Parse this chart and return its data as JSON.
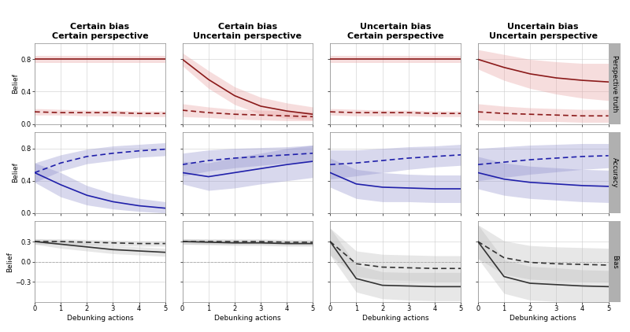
{
  "col_titles": [
    "Certain bias\nCertain perspective",
    "Certain bias\nUncertain perspective",
    "Uncertain bias\nCertain perspective",
    "Uncertain bias\nUncertain perspective"
  ],
  "row_labels": [
    "Perspective truth",
    "Accuracy",
    "Bias"
  ],
  "x": [
    0,
    1,
    2,
    3,
    4,
    5
  ],
  "colors": {
    "red_solid": "#8B1A1A",
    "red_fill": "#e8a0a0",
    "blue_solid": "#2020AA",
    "blue_fill": "#9090cc",
    "gray_solid": "#333333",
    "gray_fill": "#bbbbbb"
  },
  "charts": {
    "row0_col0": {
      "solid_y": [
        0.8,
        0.8,
        0.8,
        0.8,
        0.8,
        0.8
      ],
      "solid_lo": [
        0.76,
        0.76,
        0.76,
        0.76,
        0.76,
        0.76
      ],
      "solid_hi": [
        0.84,
        0.84,
        0.84,
        0.84,
        0.84,
        0.84
      ],
      "dash_y": [
        0.15,
        0.14,
        0.14,
        0.14,
        0.13,
        0.13
      ],
      "dash_lo": [
        0.11,
        0.11,
        0.1,
        0.1,
        0.09,
        0.09
      ],
      "dash_hi": [
        0.19,
        0.18,
        0.17,
        0.17,
        0.16,
        0.16
      ],
      "ylim": [
        0.0,
        1.0
      ],
      "yticks": [
        0.0,
        0.4,
        0.8
      ]
    },
    "row0_col1": {
      "solid_y": [
        0.8,
        0.55,
        0.35,
        0.22,
        0.16,
        0.12
      ],
      "solid_lo": [
        0.72,
        0.44,
        0.24,
        0.12,
        0.07,
        0.05
      ],
      "solid_hi": [
        0.88,
        0.66,
        0.46,
        0.33,
        0.26,
        0.21
      ],
      "dash_y": [
        0.17,
        0.14,
        0.12,
        0.11,
        0.1,
        0.09
      ],
      "dash_lo": [
        0.09,
        0.08,
        0.06,
        0.05,
        0.04,
        0.04
      ],
      "dash_hi": [
        0.25,
        0.21,
        0.18,
        0.17,
        0.16,
        0.15
      ],
      "ylim": [
        0.0,
        1.0
      ],
      "yticks": [
        0.0,
        0.4,
        0.8
      ]
    },
    "row0_col2": {
      "solid_y": [
        0.8,
        0.8,
        0.8,
        0.8,
        0.8,
        0.8
      ],
      "solid_lo": [
        0.76,
        0.76,
        0.76,
        0.76,
        0.76,
        0.76
      ],
      "solid_hi": [
        0.84,
        0.84,
        0.84,
        0.84,
        0.84,
        0.84
      ],
      "dash_y": [
        0.15,
        0.14,
        0.14,
        0.14,
        0.13,
        0.13
      ],
      "dash_lo": [
        0.11,
        0.1,
        0.1,
        0.1,
        0.09,
        0.09
      ],
      "dash_hi": [
        0.19,
        0.18,
        0.17,
        0.17,
        0.16,
        0.16
      ],
      "ylim": [
        0.0,
        1.0
      ],
      "yticks": [
        0.0,
        0.4,
        0.8
      ]
    },
    "row0_col3": {
      "solid_y": [
        0.8,
        0.7,
        0.62,
        0.57,
        0.54,
        0.52
      ],
      "solid_lo": [
        0.68,
        0.54,
        0.44,
        0.37,
        0.32,
        0.29
      ],
      "solid_hi": [
        0.92,
        0.86,
        0.8,
        0.77,
        0.75,
        0.75
      ],
      "dash_y": [
        0.15,
        0.13,
        0.12,
        0.11,
        0.1,
        0.1
      ],
      "dash_lo": [
        0.05,
        0.04,
        0.03,
        0.03,
        0.02,
        0.02
      ],
      "dash_hi": [
        0.25,
        0.22,
        0.2,
        0.19,
        0.18,
        0.18
      ],
      "ylim": [
        0.0,
        1.0
      ],
      "yticks": [
        0.0,
        0.4,
        0.8
      ]
    },
    "row1_col0": {
      "solid_y": [
        0.5,
        0.35,
        0.22,
        0.14,
        0.09,
        0.06
      ],
      "solid_lo": [
        0.38,
        0.2,
        0.1,
        0.05,
        0.02,
        0.0
      ],
      "solid_hi": [
        0.62,
        0.5,
        0.34,
        0.24,
        0.18,
        0.14
      ],
      "dash_y": [
        0.5,
        0.62,
        0.7,
        0.74,
        0.77,
        0.79
      ],
      "dash_lo": [
        0.38,
        0.52,
        0.61,
        0.65,
        0.69,
        0.71
      ],
      "dash_hi": [
        0.62,
        0.72,
        0.79,
        0.83,
        0.85,
        0.87
      ],
      "ylim": [
        0.0,
        1.0
      ],
      "yticks": [
        0.0,
        0.4,
        0.8
      ]
    },
    "row1_col1": {
      "solid_y": [
        0.5,
        0.45,
        0.5,
        0.55,
        0.6,
        0.64
      ],
      "solid_lo": [
        0.36,
        0.28,
        0.31,
        0.36,
        0.4,
        0.44
      ],
      "solid_hi": [
        0.64,
        0.62,
        0.69,
        0.74,
        0.8,
        0.84
      ],
      "dash_y": [
        0.6,
        0.65,
        0.68,
        0.7,
        0.72,
        0.74
      ],
      "dash_lo": [
        0.46,
        0.52,
        0.56,
        0.59,
        0.62,
        0.64
      ],
      "dash_hi": [
        0.74,
        0.78,
        0.8,
        0.81,
        0.82,
        0.84
      ],
      "ylim": [
        0.0,
        1.0
      ],
      "yticks": [
        0.0,
        0.4,
        0.8
      ]
    },
    "row1_col2": {
      "solid_y": [
        0.5,
        0.36,
        0.32,
        0.31,
        0.3,
        0.3
      ],
      "solid_lo": [
        0.32,
        0.18,
        0.14,
        0.14,
        0.13,
        0.13
      ],
      "solid_hi": [
        0.68,
        0.54,
        0.5,
        0.48,
        0.47,
        0.47
      ],
      "dash_y": [
        0.6,
        0.62,
        0.65,
        0.68,
        0.7,
        0.72
      ],
      "dash_lo": [
        0.42,
        0.46,
        0.5,
        0.54,
        0.57,
        0.59
      ],
      "dash_hi": [
        0.78,
        0.78,
        0.8,
        0.82,
        0.83,
        0.85
      ],
      "ylim": [
        0.0,
        1.0
      ],
      "yticks": [
        0.0,
        0.4,
        0.8
      ]
    },
    "row1_col3": {
      "solid_y": [
        0.5,
        0.42,
        0.38,
        0.36,
        0.34,
        0.33
      ],
      "solid_lo": [
        0.3,
        0.22,
        0.18,
        0.16,
        0.14,
        0.13
      ],
      "solid_hi": [
        0.7,
        0.62,
        0.58,
        0.56,
        0.54,
        0.53
      ],
      "dash_y": [
        0.6,
        0.63,
        0.66,
        0.68,
        0.7,
        0.71
      ],
      "dash_lo": [
        0.4,
        0.44,
        0.48,
        0.51,
        0.54,
        0.56
      ],
      "dash_hi": [
        0.8,
        0.82,
        0.84,
        0.85,
        0.86,
        0.86
      ],
      "ylim": [
        0.0,
        1.0
      ],
      "yticks": [
        0.0,
        0.4,
        0.8
      ]
    },
    "row2_col0": {
      "solid_y": [
        0.3,
        0.26,
        0.22,
        0.18,
        0.16,
        0.14
      ],
      "solid_lo": [
        0.26,
        0.2,
        0.16,
        0.12,
        0.1,
        0.08
      ],
      "solid_hi": [
        0.34,
        0.32,
        0.28,
        0.24,
        0.22,
        0.2
      ],
      "dash_y": [
        0.3,
        0.3,
        0.29,
        0.28,
        0.27,
        0.27
      ],
      "dash_lo": [
        0.26,
        0.26,
        0.25,
        0.24,
        0.23,
        0.23
      ],
      "dash_hi": [
        0.34,
        0.34,
        0.33,
        0.32,
        0.31,
        0.31
      ],
      "ylim": [
        -0.6,
        0.6
      ],
      "yticks": [
        -0.3,
        0.0,
        0.3
      ]
    },
    "row2_col1": {
      "solid_y": [
        0.3,
        0.29,
        0.28,
        0.28,
        0.27,
        0.27
      ],
      "solid_lo": [
        0.26,
        0.25,
        0.24,
        0.24,
        0.23,
        0.23
      ],
      "solid_hi": [
        0.34,
        0.33,
        0.32,
        0.32,
        0.31,
        0.31
      ],
      "dash_y": [
        0.3,
        0.3,
        0.3,
        0.3,
        0.29,
        0.29
      ],
      "dash_lo": [
        0.26,
        0.26,
        0.26,
        0.26,
        0.25,
        0.25
      ],
      "dash_hi": [
        0.34,
        0.34,
        0.34,
        0.34,
        0.33,
        0.33
      ],
      "ylim": [
        -0.6,
        0.6
      ],
      "yticks": [
        -0.3,
        0.0,
        0.3
      ]
    },
    "row2_col2": {
      "solid_y": [
        0.3,
        -0.25,
        -0.35,
        -0.36,
        -0.37,
        -0.37
      ],
      "solid_lo": [
        0.1,
        -0.45,
        -0.55,
        -0.57,
        -0.58,
        -0.58
      ],
      "solid_hi": [
        0.5,
        -0.05,
        -0.15,
        -0.16,
        -0.16,
        -0.16
      ],
      "dash_y": [
        0.3,
        -0.03,
        -0.08,
        -0.09,
        -0.1,
        -0.1
      ],
      "dash_lo": [
        0.1,
        -0.22,
        -0.27,
        -0.28,
        -0.29,
        -0.29
      ],
      "dash_hi": [
        0.5,
        0.16,
        0.11,
        0.1,
        0.09,
        0.09
      ],
      "ylim": [
        -0.6,
        0.6
      ],
      "yticks": [
        -0.3,
        0.0,
        0.3
      ]
    },
    "row2_col3": {
      "solid_y": [
        0.3,
        -0.22,
        -0.32,
        -0.34,
        -0.36,
        -0.37
      ],
      "solid_lo": [
        0.05,
        -0.47,
        -0.57,
        -0.59,
        -0.6,
        -0.61
      ],
      "solid_hi": [
        0.55,
        0.03,
        -0.07,
        -0.09,
        -0.12,
        -0.13
      ],
      "dash_y": [
        0.3,
        0.06,
        -0.01,
        -0.03,
        -0.04,
        -0.05
      ],
      "dash_lo": [
        0.05,
        -0.19,
        -0.26,
        -0.28,
        -0.29,
        -0.3
      ],
      "dash_hi": [
        0.55,
        0.31,
        0.24,
        0.22,
        0.21,
        0.2
      ],
      "ylim": [
        -0.6,
        0.6
      ],
      "yticks": [
        -0.3,
        0.0,
        0.3
      ]
    }
  },
  "background_color": "#ffffff",
  "panel_bg": "#ffffff",
  "grid_color": "#cccccc",
  "label_bg": "#b0b0b0",
  "axis_label_size": 6.5,
  "title_size": 8.0,
  "tick_size": 6.0,
  "side_label_size": 6.0
}
